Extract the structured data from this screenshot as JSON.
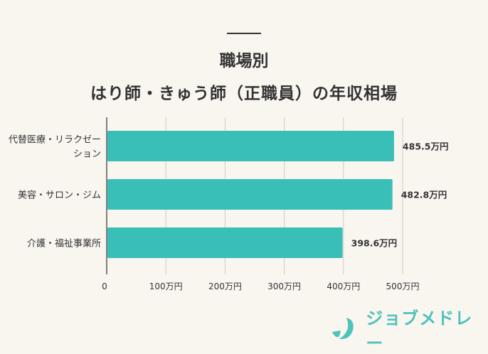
{
  "chart_data": {
    "type": "bar",
    "orientation": "horizontal",
    "title": "職場別",
    "subtitle": "はり師・きゅう師（正職員）の年収相場",
    "categories": [
      "代替医療・リラクゼーション",
      "美容・サロン・ジム",
      "介護・福祉事業所"
    ],
    "category_lines": [
      [
        "代替医療・リラクゼー",
        "ション"
      ],
      [
        "美容・サロン・ジム"
      ],
      [
        "介護・福祉事業所"
      ]
    ],
    "values": [
      485.5,
      482.8,
      398.6
    ],
    "value_labels": [
      "485.5万円",
      "482.8万円",
      "398.6万円"
    ],
    "xlim": [
      0,
      500
    ],
    "xticks": [
      0,
      100,
      200,
      300,
      400,
      500
    ],
    "xtick_labels": [
      "0",
      "100万円",
      "200万円",
      "300万円",
      "400万円",
      "500万円"
    ],
    "grid": true,
    "bar_color": "#39bfb7"
  },
  "brand": {
    "name": "ジョブメドレー",
    "color": "#4ec3b9"
  }
}
